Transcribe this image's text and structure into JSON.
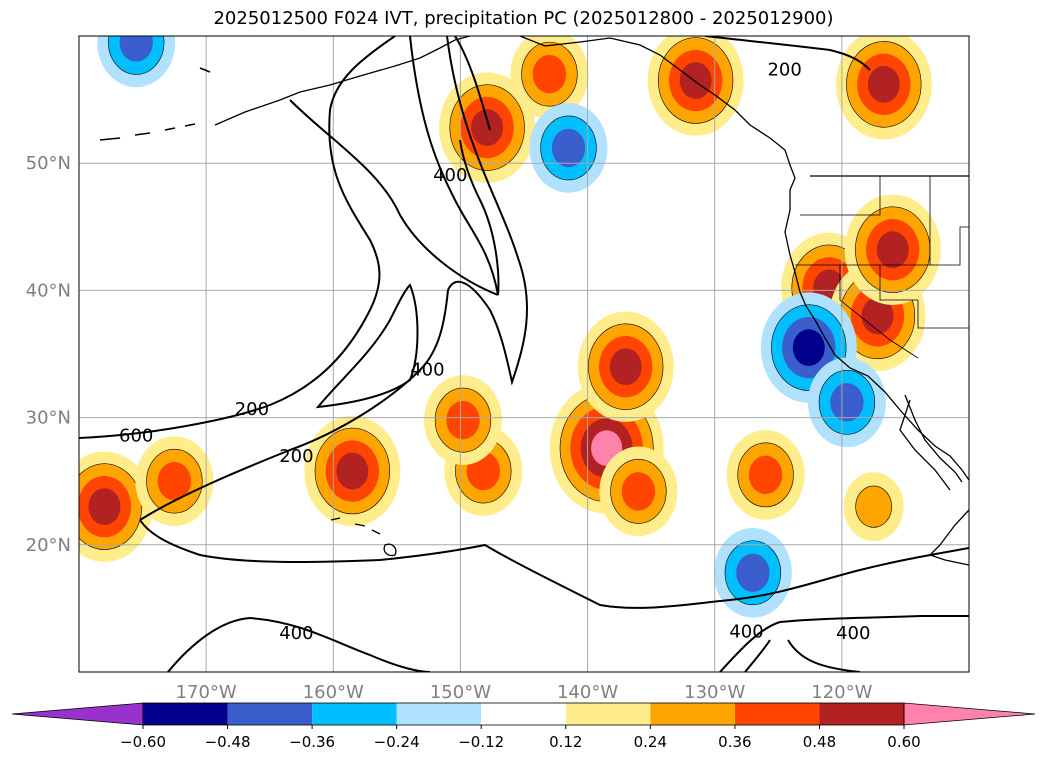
{
  "chart_data": {
    "type": "contour-map",
    "title": "2025012500 F024 IVT, precipitation PC (2025012800 - 2025012900)",
    "lon_ticks": [
      {
        "label": "170°W",
        "lon": -170
      },
      {
        "label": "160°W",
        "lon": -160
      },
      {
        "label": "150°W",
        "lon": -150
      },
      {
        "label": "140°W",
        "lon": -140
      },
      {
        "label": "130°W",
        "lon": -130
      },
      {
        "label": "120°W",
        "lon": -120
      }
    ],
    "lat_ticks": [
      {
        "label": "50°N",
        "lat": 50
      },
      {
        "label": "40°N",
        "lat": 40
      },
      {
        "label": "30°N",
        "lat": 30
      },
      {
        "label": "20°N",
        "lat": 20
      }
    ],
    "lon_range": [
      -180,
      -110
    ],
    "lat_range": [
      10,
      60
    ],
    "grid": true,
    "ivt_contour_labels": [
      {
        "text": "600",
        "lon": -175.5,
        "lat": 28.5
      },
      {
        "text": "400",
        "lon": -150.8,
        "lat": 49.0
      },
      {
        "text": "400",
        "lon": -152.6,
        "lat": 33.7
      },
      {
        "text": "200",
        "lon": -166.4,
        "lat": 30.6
      },
      {
        "text": "200",
        "lon": -162.9,
        "lat": 26.9
      },
      {
        "text": "200",
        "lon": -124.5,
        "lat": 57.3
      },
      {
        "text": "400",
        "lon": -162.9,
        "lat": 13.0
      },
      {
        "text": "400",
        "lon": -127.5,
        "lat": 13.1
      },
      {
        "text": "400",
        "lon": -119.1,
        "lat": 13.0
      }
    ],
    "colorbar": {
      "boundaries": [
        -0.6,
        -0.48,
        -0.36,
        -0.24,
        -0.12,
        0.12,
        0.24,
        0.36,
        0.48,
        0.6
      ],
      "tick_labels": [
        "−0.60",
        "−0.48",
        "−0.36",
        "−0.24",
        "−0.12",
        "0.12",
        "0.24",
        "0.36",
        "0.48",
        "0.60"
      ],
      "colors": [
        "#9932cc",
        "#00008b",
        "#3a5fcd",
        "#00bfff",
        "#b0e2ff",
        "#ffffff",
        "#ffec8b",
        "#ffa500",
        "#ff4500",
        "#b22222",
        "#ff82ab"
      ],
      "extend": "both"
    },
    "precip_pc_blobs": [
      {
        "lon": -138.5,
        "lat": 27.6,
        "value": 0.5
      },
      {
        "lon": -137.0,
        "lat": 34.0,
        "value": 0.38
      },
      {
        "lon": -136.0,
        "lat": 24.2,
        "value": 0.26
      },
      {
        "lon": -158.5,
        "lat": 25.8,
        "value": 0.38
      },
      {
        "lon": -148.2,
        "lat": 25.8,
        "value": 0.26
      },
      {
        "lon": -149.8,
        "lat": 29.8,
        "value": 0.26
      },
      {
        "lon": -178.0,
        "lat": 23.0,
        "value": 0.38
      },
      {
        "lon": -172.5,
        "lat": 25.0,
        "value": 0.26
      },
      {
        "lon": -147.9,
        "lat": 52.8,
        "value": 0.38
      },
      {
        "lon": -116.7,
        "lat": 56.2,
        "value": 0.4
      },
      {
        "lon": -121.0,
        "lat": 40.2,
        "value": 0.4
      },
      {
        "lon": -117.2,
        "lat": 38.0,
        "value": 0.4
      },
      {
        "lon": -116.0,
        "lat": 43.2,
        "value": 0.38
      },
      {
        "lon": -126.0,
        "lat": 25.5,
        "value": 0.26
      },
      {
        "lon": -117.5,
        "lat": 23.0,
        "value": 0.14
      },
      {
        "lon": -143.0,
        "lat": 57.0,
        "value": 0.26
      },
      {
        "lon": -131.5,
        "lat": 56.5,
        "value": 0.38
      },
      {
        "lon": -141.5,
        "lat": 51.2,
        "value": -0.3
      },
      {
        "lon": -122.6,
        "lat": 35.5,
        "value": -0.36
      },
      {
        "lon": -127.0,
        "lat": 17.8,
        "value": -0.3
      },
      {
        "lon": -119.6,
        "lat": 31.2,
        "value": -0.3
      },
      {
        "lon": -175.5,
        "lat": 59.5,
        "value": -0.3
      }
    ]
  }
}
